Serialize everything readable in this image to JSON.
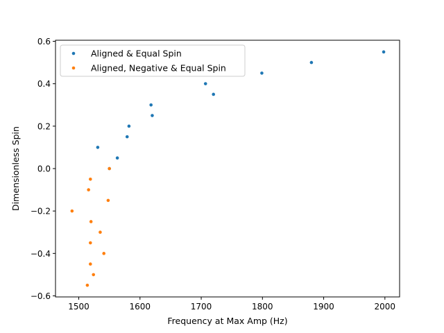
{
  "chart_data": {
    "type": "scatter",
    "title": "",
    "xlabel": "Frequency at Max Amp (Hz)",
    "ylabel": "Dimensionless Spin",
    "xlim": [
      1462,
      2024
    ],
    "ylim": [
      -0.605,
      0.605
    ],
    "xticks": [
      1500,
      1600,
      1700,
      1800,
      1900,
      2000
    ],
    "yticks": [
      -0.6,
      -0.4,
      -0.2,
      0.0,
      0.2,
      0.4,
      0.6
    ],
    "xtick_labels": [
      "1500",
      "1600",
      "1700",
      "1800",
      "1900",
      "2000"
    ],
    "ytick_labels": [
      "−0.6",
      "−0.4",
      "−0.2",
      "0.0",
      "0.2",
      "0.4",
      "0.6"
    ],
    "grid": false,
    "legend_position": "top-left",
    "series": [
      {
        "name": "Aligned & Equal Spin",
        "color": "#1f77b4",
        "points": [
          {
            "x": 1531,
            "y": 0.1
          },
          {
            "x": 1550,
            "y": 0.0
          },
          {
            "x": 1563,
            "y": 0.05
          },
          {
            "x": 1579,
            "y": 0.15
          },
          {
            "x": 1582,
            "y": 0.2
          },
          {
            "x": 1618,
            "y": 0.3
          },
          {
            "x": 1620,
            "y": 0.25
          },
          {
            "x": 1707,
            "y": 0.4
          },
          {
            "x": 1720,
            "y": 0.35
          },
          {
            "x": 1799,
            "y": 0.45
          },
          {
            "x": 1880,
            "y": 0.5
          },
          {
            "x": 1998,
            "y": 0.55
          }
        ]
      },
      {
        "name": "Aligned, Negative & Equal Spin",
        "color": "#ff7f0e",
        "points": [
          {
            "x": 1489,
            "y": -0.2
          },
          {
            "x": 1514,
            "y": -0.55
          },
          {
            "x": 1516,
            "y": -0.1
          },
          {
            "x": 1519,
            "y": -0.05
          },
          {
            "x": 1519,
            "y": -0.35
          },
          {
            "x": 1519,
            "y": -0.45
          },
          {
            "x": 1520,
            "y": -0.25
          },
          {
            "x": 1524,
            "y": -0.5
          },
          {
            "x": 1535,
            "y": -0.3
          },
          {
            "x": 1541,
            "y": -0.4
          },
          {
            "x": 1548,
            "y": -0.15
          },
          {
            "x": 1550,
            "y": 0.0
          }
        ]
      }
    ]
  }
}
